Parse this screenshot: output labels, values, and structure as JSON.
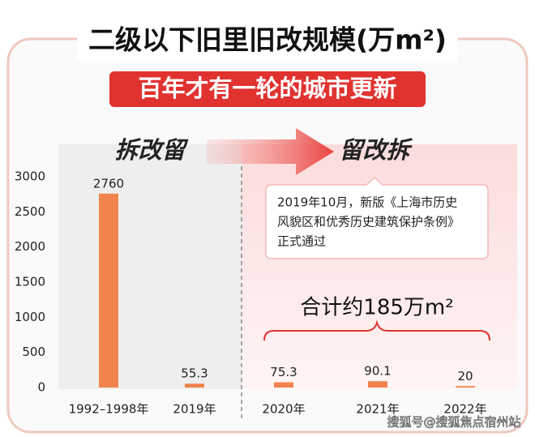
{
  "chart_data": {
    "type": "bar",
    "title": "二级以下旧里旧改规模(万m²)",
    "subtitle": "百年才有一轮的城市更新",
    "phase_labels": [
      "拆改留",
      "留改拆"
    ],
    "annotation": [
      "2019年10月，新版《上海市历史",
      "风貌区和优秀历史建筑保护条例》",
      "正式通过"
    ],
    "total_label": "合计约185万m²",
    "categories": [
      "1992–1998年",
      "2019年",
      "2020年",
      "2021年",
      "2022年"
    ],
    "values": [
      2760,
      55.3,
      75.3,
      90.1,
      20
    ],
    "color": "#f0844c",
    "ylim": [
      0,
      3000
    ],
    "yticks": [
      0,
      500,
      1000,
      1500,
      2000,
      2500,
      3000
    ],
    "grid": false,
    "watermark": "搜狐号@搜狐焦点宿州站"
  }
}
